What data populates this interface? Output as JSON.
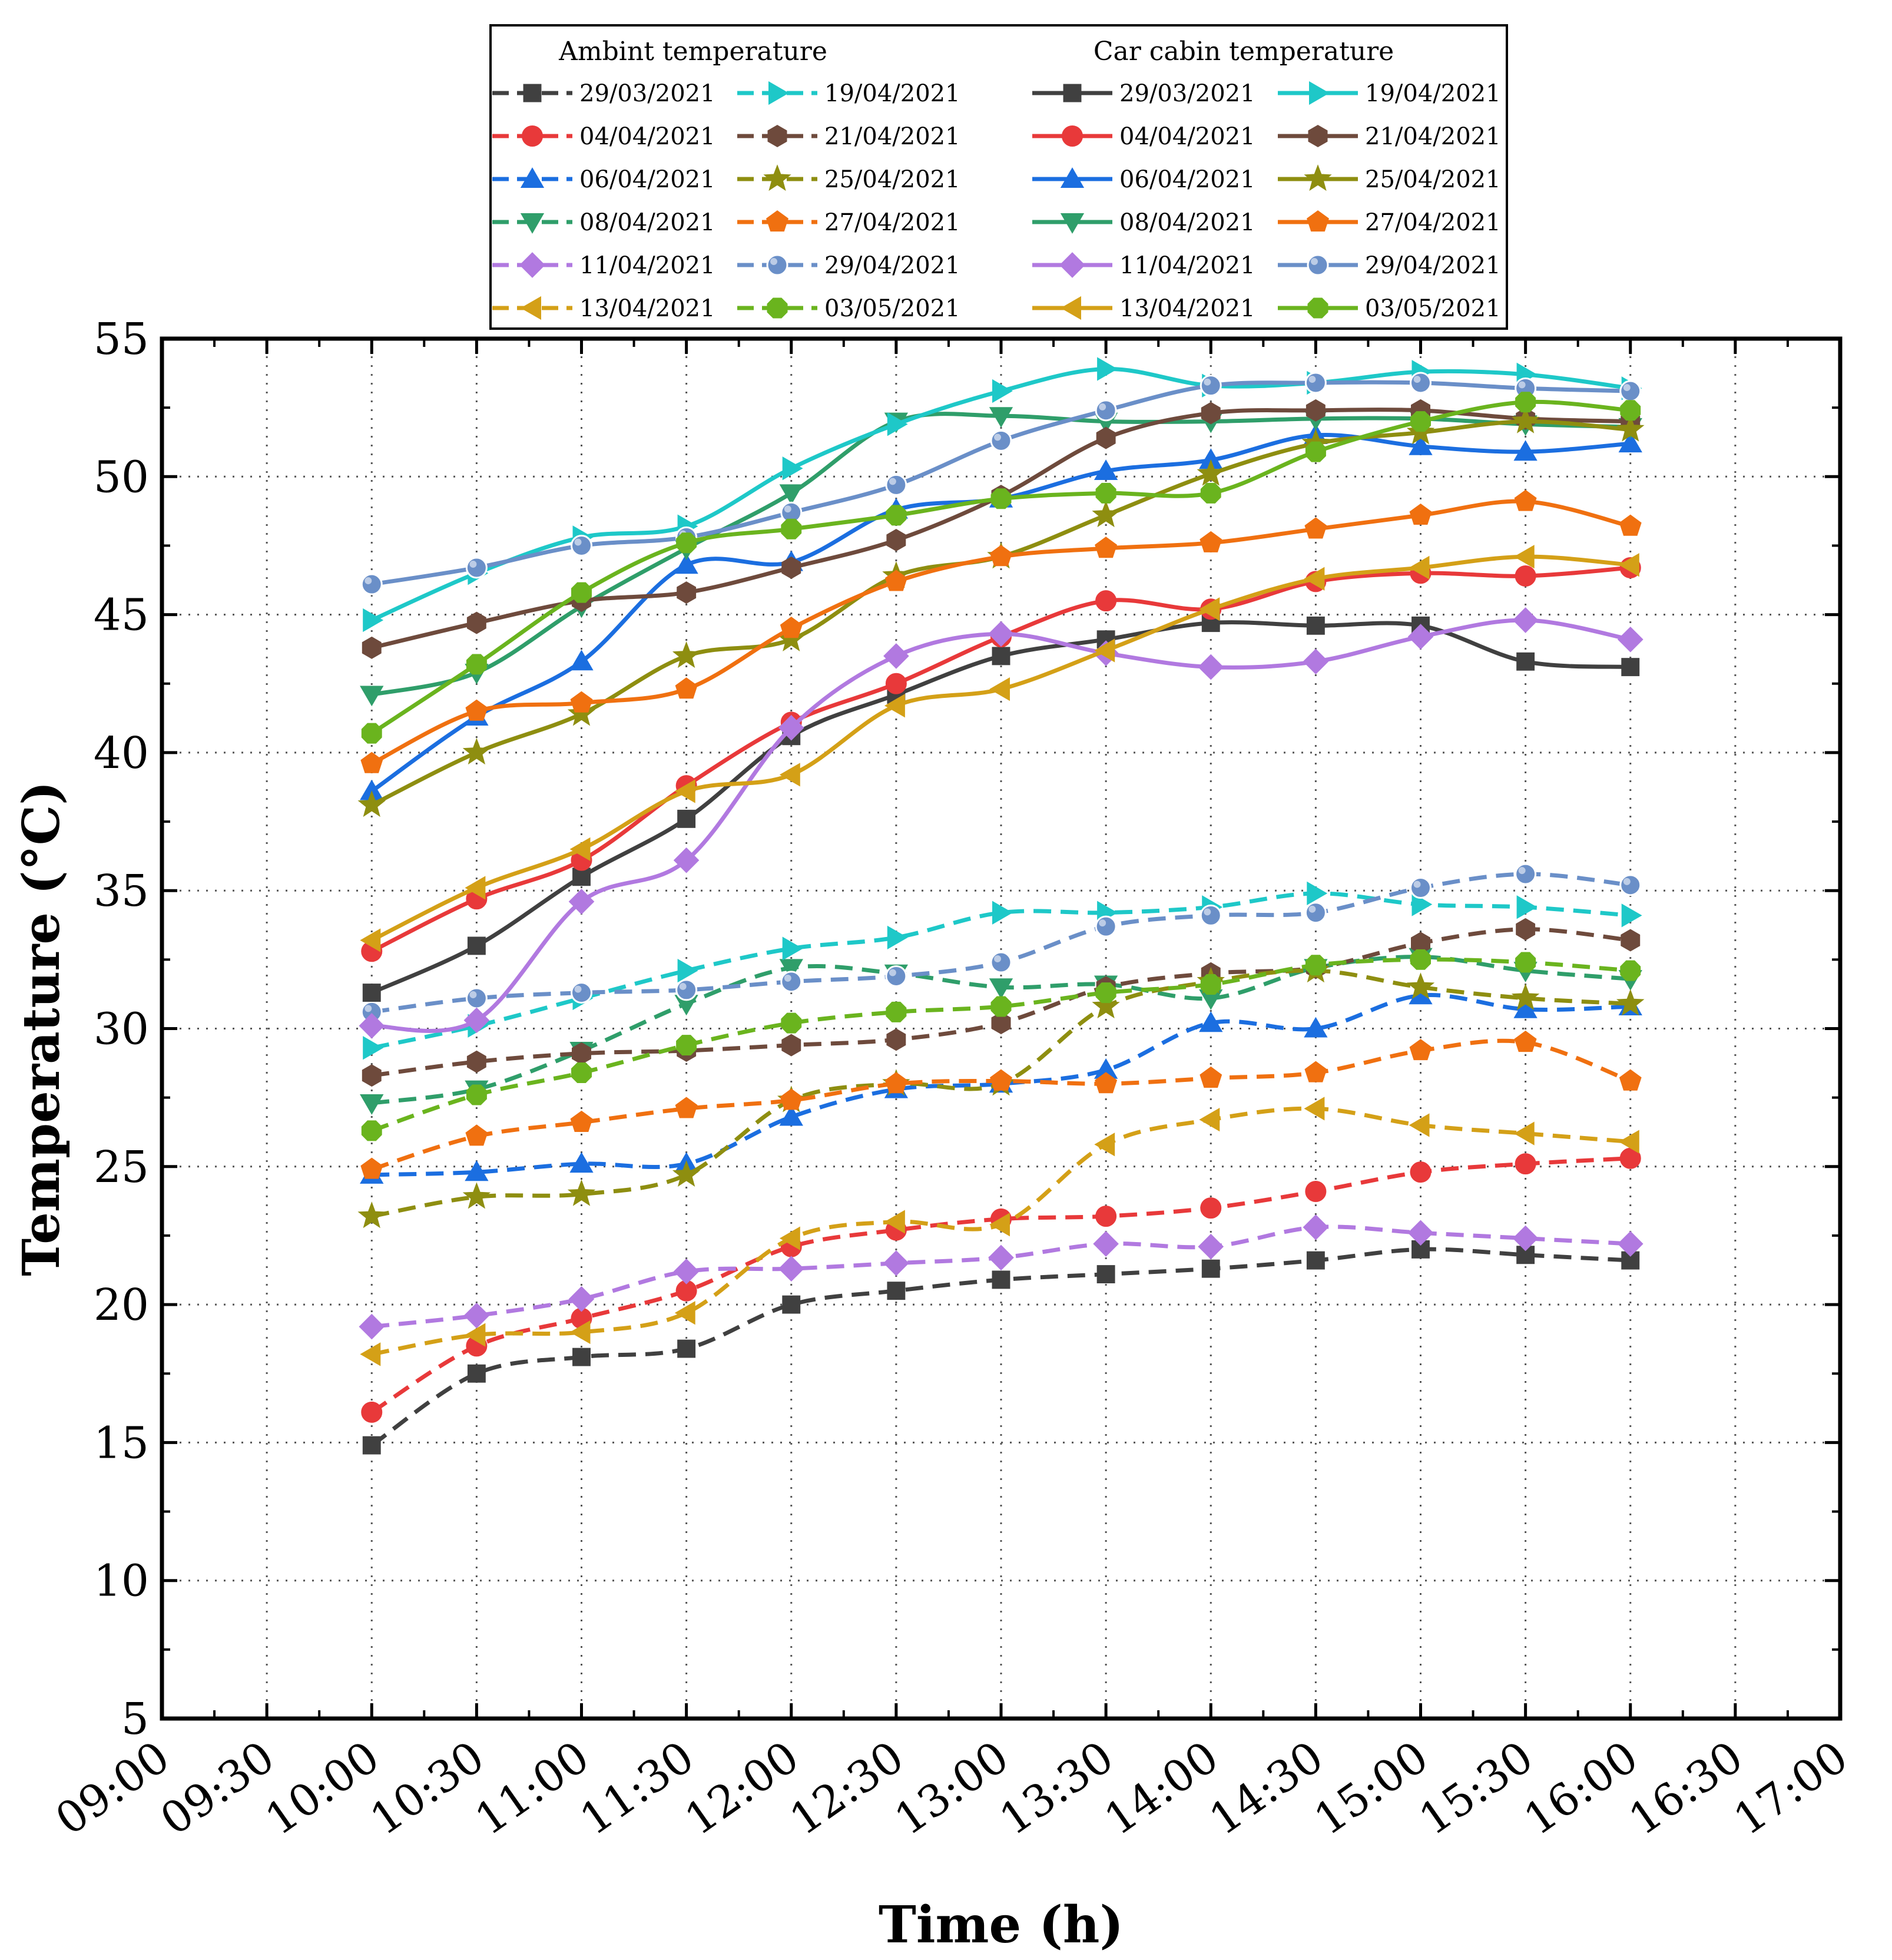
{
  "chart_data": {
    "type": "line",
    "title": "",
    "xlabel": "Time (h)",
    "ylabel": "Temperature (°C)",
    "xlim": [
      "09:00",
      "17:00"
    ],
    "ylim": [
      5,
      55
    ],
    "grid": true,
    "x_ticks": [
      "09:00",
      "09:30",
      "10:00",
      "10:30",
      "11:00",
      "11:30",
      "12:00",
      "12:30",
      "13:00",
      "13:30",
      "14:00",
      "14:30",
      "15:00",
      "15:30",
      "16:00",
      "16:30",
      "17:00"
    ],
    "y_ticks": [
      "5",
      "10",
      "15",
      "20",
      "25",
      "30",
      "35",
      "40",
      "45",
      "50",
      "55"
    ],
    "x": [
      "10:00",
      "10:30",
      "11:00",
      "11:30",
      "12:00",
      "12:30",
      "13:00",
      "13:30",
      "14:00",
      "14:30",
      "15:00",
      "15:30",
      "16:00"
    ],
    "legend": {
      "position": "top-center",
      "ambient_header": "Ambint temperature",
      "cabin_header": "Car cabin temperature"
    },
    "series": [
      {
        "name": "29/03/2021",
        "group": "ambient",
        "color": "#404040",
        "marker": "square",
        "values": [
          14.9,
          17.5,
          18.1,
          18.4,
          20.0,
          20.5,
          20.9,
          21.1,
          21.3,
          21.6,
          22.0,
          21.8,
          21.6
        ]
      },
      {
        "name": "04/04/2021",
        "group": "ambient",
        "color": "#e8393a",
        "marker": "circle",
        "values": [
          16.1,
          18.5,
          19.5,
          20.5,
          22.1,
          22.7,
          23.1,
          23.2,
          23.5,
          24.1,
          24.8,
          25.1,
          25.3
        ]
      },
      {
        "name": "06/04/2021",
        "group": "ambient",
        "color": "#1b6ee0",
        "marker": "triangle-up",
        "values": [
          24.7,
          24.8,
          25.1,
          25.1,
          26.8,
          27.8,
          28.0,
          28.5,
          30.2,
          30.0,
          31.2,
          30.7,
          30.8
        ]
      },
      {
        "name": "08/04/2021",
        "group": "ambient",
        "color": "#2f9e6a",
        "marker": "triangle-down",
        "values": [
          27.3,
          27.8,
          29.2,
          30.9,
          32.2,
          32.0,
          31.5,
          31.6,
          31.1,
          32.2,
          32.6,
          32.1,
          31.8
        ]
      },
      {
        "name": "11/04/2021",
        "group": "ambient",
        "color": "#b179e0",
        "marker": "diamond",
        "values": [
          19.2,
          19.6,
          20.2,
          21.2,
          21.3,
          21.5,
          21.7,
          22.2,
          22.1,
          22.8,
          22.6,
          22.4,
          22.2
        ]
      },
      {
        "name": "13/04/2021",
        "group": "ambient",
        "color": "#d4a017",
        "marker": "triangle-left",
        "values": [
          18.2,
          18.9,
          19.0,
          19.7,
          22.4,
          23.0,
          22.9,
          25.8,
          26.7,
          27.1,
          26.5,
          26.2,
          25.9
        ]
      },
      {
        "name": "19/04/2021",
        "group": "ambient",
        "color": "#1ec8c8",
        "marker": "triangle-right",
        "values": [
          29.3,
          30.1,
          31.1,
          32.1,
          32.9,
          33.3,
          34.2,
          34.2,
          34.4,
          34.9,
          34.5,
          34.4,
          34.1
        ]
      },
      {
        "name": "21/04/2021",
        "group": "ambient",
        "color": "#6e4a3c",
        "marker": "hexagon",
        "values": [
          28.3,
          28.8,
          29.1,
          29.2,
          29.4,
          29.6,
          30.2,
          31.5,
          32.0,
          32.2,
          33.1,
          33.6,
          33.2
        ]
      },
      {
        "name": "25/04/2021",
        "group": "ambient",
        "color": "#8e8e10",
        "marker": "star",
        "values": [
          23.2,
          23.9,
          24.0,
          24.7,
          27.4,
          28.0,
          28.0,
          30.8,
          31.7,
          32.1,
          31.5,
          31.1,
          30.9
        ]
      },
      {
        "name": "27/04/2021",
        "group": "ambient",
        "color": "#f07010",
        "marker": "pentagon",
        "values": [
          24.9,
          26.1,
          26.6,
          27.1,
          27.4,
          28.0,
          28.1,
          28.0,
          28.2,
          28.4,
          29.2,
          29.5,
          28.1
        ]
      },
      {
        "name": "29/04/2021",
        "group": "ambient",
        "color": "#6a8fc8",
        "marker": "sphere",
        "values": [
          30.6,
          31.1,
          31.3,
          31.4,
          31.7,
          31.9,
          32.4,
          33.7,
          34.1,
          34.2,
          35.1,
          35.6,
          35.2
        ]
      },
      {
        "name": "03/05/2021",
        "group": "ambient",
        "color": "#6ab41e",
        "marker": "octagon",
        "values": [
          26.3,
          27.6,
          28.4,
          29.4,
          30.2,
          30.6,
          30.8,
          31.3,
          31.6,
          32.3,
          32.5,
          32.4,
          32.1
        ]
      },
      {
        "name": "29/03/2021",
        "group": "cabin",
        "color": "#404040",
        "marker": "square",
        "values": [
          31.3,
          33.0,
          35.5,
          37.6,
          40.6,
          42.1,
          43.5,
          44.1,
          44.7,
          44.6,
          44.6,
          43.3,
          43.1
        ]
      },
      {
        "name": "04/04/2021",
        "group": "cabin",
        "color": "#e8393a",
        "marker": "circle",
        "values": [
          32.8,
          34.7,
          36.1,
          38.8,
          41.1,
          42.5,
          44.2,
          45.5,
          45.2,
          46.2,
          46.5,
          46.4,
          46.7
        ]
      },
      {
        "name": "06/04/2021",
        "group": "cabin",
        "color": "#1b6ee0",
        "marker": "triangle-up",
        "values": [
          38.6,
          41.3,
          43.3,
          46.8,
          46.9,
          48.8,
          49.2,
          50.2,
          50.6,
          51.5,
          51.1,
          50.9,
          51.2
        ]
      },
      {
        "name": "08/04/2021",
        "group": "cabin",
        "color": "#2f9e6a",
        "marker": "triangle-down",
        "values": [
          42.1,
          42.9,
          45.3,
          47.4,
          49.4,
          52.0,
          52.2,
          52.0,
          52.0,
          52.1,
          52.1,
          51.9,
          51.8
        ]
      },
      {
        "name": "11/04/2021",
        "group": "cabin",
        "color": "#b179e0",
        "marker": "diamond",
        "values": [
          30.1,
          30.3,
          34.6,
          36.1,
          40.9,
          43.5,
          44.3,
          43.6,
          43.1,
          43.3,
          44.2,
          44.8,
          44.1
        ]
      },
      {
        "name": "13/04/2021",
        "group": "cabin",
        "color": "#d4a017",
        "marker": "triangle-left",
        "values": [
          33.2,
          35.1,
          36.5,
          38.6,
          39.2,
          41.7,
          42.3,
          43.7,
          45.2,
          46.3,
          46.7,
          47.1,
          46.8
        ]
      },
      {
        "name": "19/04/2021",
        "group": "cabin",
        "color": "#1ec8c8",
        "marker": "triangle-right",
        "values": [
          44.8,
          46.5,
          47.8,
          48.2,
          50.3,
          51.9,
          53.1,
          53.9,
          53.3,
          53.4,
          53.8,
          53.7,
          53.2
        ]
      },
      {
        "name": "21/04/2021",
        "group": "cabin",
        "color": "#6e4a3c",
        "marker": "hexagon",
        "values": [
          43.8,
          44.7,
          45.5,
          45.8,
          46.7,
          47.7,
          49.3,
          51.4,
          52.3,
          52.4,
          52.4,
          52.1,
          52.0
        ]
      },
      {
        "name": "25/04/2021",
        "group": "cabin",
        "color": "#8e8e10",
        "marker": "star",
        "values": [
          38.1,
          40.0,
          41.4,
          43.5,
          44.1,
          46.4,
          47.1,
          48.6,
          50.1,
          51.2,
          51.6,
          52.0,
          51.7
        ]
      },
      {
        "name": "27/04/2021",
        "group": "cabin",
        "color": "#f07010",
        "marker": "pentagon",
        "values": [
          39.6,
          41.5,
          41.8,
          42.3,
          44.5,
          46.2,
          47.1,
          47.4,
          47.6,
          48.1,
          48.6,
          49.1,
          48.2
        ]
      },
      {
        "name": "29/04/2021",
        "group": "cabin",
        "color": "#6a8fc8",
        "marker": "sphere",
        "values": [
          46.1,
          46.7,
          47.5,
          47.8,
          48.7,
          49.7,
          51.3,
          52.4,
          53.3,
          53.4,
          53.4,
          53.2,
          53.1
        ]
      },
      {
        "name": "03/05/2021",
        "group": "cabin",
        "color": "#6ab41e",
        "marker": "octagon",
        "values": [
          40.7,
          43.2,
          45.8,
          47.6,
          48.1,
          48.6,
          49.2,
          49.4,
          49.4,
          50.9,
          52.0,
          52.7,
          52.4
        ]
      }
    ]
  }
}
